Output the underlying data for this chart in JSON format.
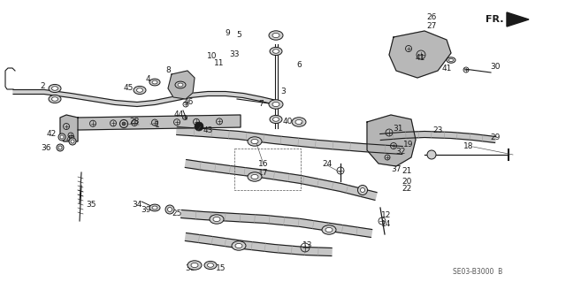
{
  "background_color": "#ffffff",
  "line_color": "#1a1a1a",
  "part_number_ref": "SE03-B3000  B",
  "fr_label": "FR.",
  "figsize": [
    6.4,
    3.19
  ],
  "dpi": 100
}
